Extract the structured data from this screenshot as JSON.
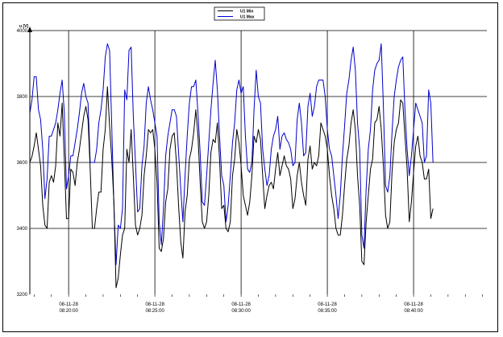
{
  "colors": {
    "series_min": "#000000",
    "series_max": "#0000cc",
    "grid": "#000000"
  },
  "chart_data": {
    "type": "line",
    "ylabel": "u [V]",
    "ylim": [
      3200,
      4000
    ],
    "y_ticks": [
      3200,
      3400,
      3600,
      3800,
      4000
    ],
    "x_ticks": [
      {
        "date": "08-11-28",
        "time": "08:20:00"
      },
      {
        "date": "08-11-28",
        "time": "08:25:00"
      },
      {
        "date": "08-11-28",
        "time": "08:30:00"
      },
      {
        "date": "08-11-28",
        "time": "08:35:00"
      },
      {
        "date": "08-11-28",
        "time": "08:40:00"
      }
    ],
    "x_start": "08:17:45",
    "x_end": "08:44:15",
    "sample_interval_seconds": 7.5,
    "grid": true,
    "legend": "top-center",
    "series": [
      {
        "name": "U1 Min",
        "color": "#000000",
        "values": [
          3600,
          3618,
          3650,
          3690,
          3640,
          3590,
          3470,
          3410,
          3400,
          3540,
          3560,
          3540,
          3590,
          3720,
          3680,
          3780,
          3610,
          3430,
          3430,
          3580,
          3570,
          3530,
          3600,
          3640,
          3690,
          3740,
          3770,
          3730,
          3580,
          3400,
          3400,
          3460,
          3510,
          3510,
          3640,
          3700,
          3830,
          3710,
          3610,
          3480,
          3220,
          3250,
          3320,
          3380,
          3400,
          3640,
          3600,
          3700,
          3560,
          3410,
          3380,
          3400,
          3440,
          3560,
          3620,
          3700,
          3690,
          3700,
          3640,
          3540,
          3340,
          3330,
          3370,
          3480,
          3520,
          3640,
          3680,
          3690,
          3600,
          3470,
          3360,
          3310,
          3450,
          3500,
          3610,
          3640,
          3690,
          3760,
          3680,
          3540,
          3420,
          3400,
          3420,
          3500,
          3630,
          3670,
          3660,
          3720,
          3610,
          3460,
          3470,
          3400,
          3390,
          3420,
          3560,
          3610,
          3700,
          3660,
          3590,
          3500,
          3470,
          3440,
          3480,
          3560,
          3680,
          3660,
          3700,
          3670,
          3560,
          3460,
          3500,
          3530,
          3540,
          3520,
          3580,
          3630,
          3560,
          3590,
          3620,
          3590,
          3580,
          3550,
          3460,
          3490,
          3560,
          3600,
          3540,
          3500,
          3470,
          3610,
          3650,
          3580,
          3600,
          3590,
          3620,
          3720,
          3700,
          3680,
          3640,
          3560,
          3500,
          3460,
          3400,
          3380,
          3380,
          3440,
          3530,
          3610,
          3650,
          3720,
          3760,
          3700,
          3560,
          3470,
          3300,
          3290,
          3420,
          3500,
          3580,
          3610,
          3720,
          3730,
          3770,
          3700,
          3590,
          3440,
          3400,
          3420,
          3570,
          3660,
          3700,
          3720,
          3790,
          3780,
          3680,
          3580,
          3420,
          3480,
          3570,
          3650,
          3680,
          3620,
          3600,
          3550,
          3550,
          3580,
          3430,
          3460
        ]
      },
      {
        "name": "U1 Max",
        "color": "#0000cc",
        "values": [
          3750,
          3790,
          3860,
          3860,
          3760,
          3730,
          3640,
          3490,
          3550,
          3680,
          3680,
          3700,
          3720,
          3760,
          3810,
          3850,
          3750,
          3520,
          3560,
          3620,
          3620,
          3660,
          3700,
          3750,
          3810,
          3840,
          3800,
          3780,
          3600,
          3600,
          3600,
          3640,
          3720,
          3760,
          3820,
          3920,
          3960,
          3940,
          3710,
          3470,
          3290,
          3410,
          3400,
          3460,
          3820,
          3790,
          3940,
          3950,
          3740,
          3600,
          3450,
          3460,
          3590,
          3650,
          3780,
          3830,
          3790,
          3760,
          3720,
          3680,
          3420,
          3350,
          3460,
          3620,
          3680,
          3720,
          3760,
          3760,
          3740,
          3630,
          3520,
          3420,
          3560,
          3680,
          3780,
          3830,
          3830,
          3850,
          3750,
          3630,
          3480,
          3470,
          3560,
          3660,
          3760,
          3840,
          3910,
          3820,
          3680,
          3560,
          3530,
          3420,
          3470,
          3560,
          3660,
          3720,
          3820,
          3850,
          3810,
          3830,
          3680,
          3580,
          3570,
          3600,
          3760,
          3880,
          3800,
          3780,
          3640,
          3580,
          3530,
          3560,
          3640,
          3680,
          3700,
          3740,
          3640,
          3680,
          3690,
          3670,
          3660,
          3640,
          3590,
          3600,
          3730,
          3780,
          3720,
          3620,
          3630,
          3770,
          3810,
          3740,
          3770,
          3830,
          3850,
          3850,
          3850,
          3800,
          3700,
          3640,
          3620,
          3560,
          3500,
          3430,
          3500,
          3620,
          3710,
          3810,
          3850,
          3910,
          3950,
          3880,
          3720,
          3640,
          3380,
          3340,
          3520,
          3640,
          3700,
          3820,
          3880,
          3900,
          3910,
          3960,
          3770,
          3530,
          3510,
          3560,
          3690,
          3800,
          3850,
          3890,
          3910,
          3920,
          3760,
          3640,
          3560,
          3620,
          3700,
          3780,
          3760,
          3740,
          3720,
          3600,
          3620,
          3820,
          3780,
          3600
        ]
      }
    ]
  }
}
